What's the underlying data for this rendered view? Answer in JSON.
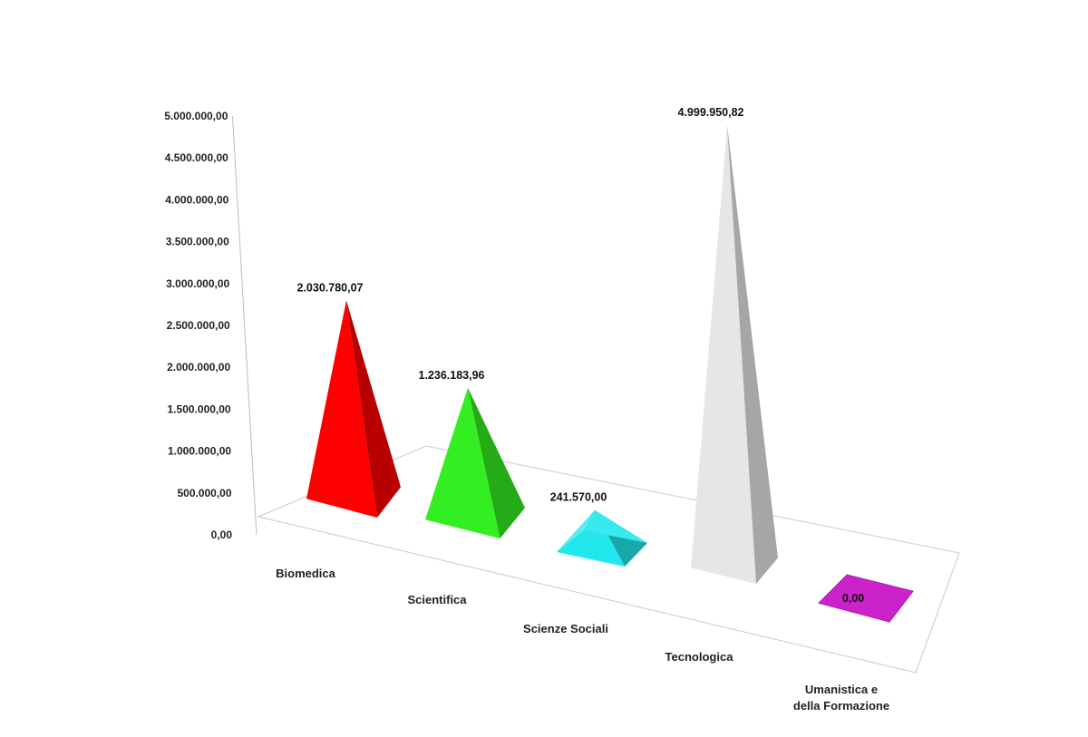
{
  "chart_data": {
    "type": "bar",
    "style": "3d-pyramid",
    "title": "",
    "xlabel": "",
    "ylabel": "",
    "categories": [
      "Biomedica",
      "Scientifica",
      "Scienze Sociali",
      "Tecnologica",
      "Umanistica e della Formazione"
    ],
    "category_lines": [
      [
        "Biomedica"
      ],
      [
        "Scientifica"
      ],
      [
        "Scienze Sociali"
      ],
      [
        "Tecnologica"
      ],
      [
        "Umanistica e",
        "della Formazione"
      ]
    ],
    "values": [
      2030780.07,
      1236183.96,
      241570.0,
      4999950.82,
      0.0
    ],
    "data_labels": [
      "2.030.780,07",
      "1.236.183,96",
      "241.570,00",
      "4.999.950,82",
      "0,00"
    ],
    "colors": [
      "#ff0000",
      "#33ee22",
      "#22e8ee",
      "#e6e6e6",
      "#cc22cc"
    ],
    "ylim": [
      0,
      5000000
    ],
    "yticks": [
      0,
      500000,
      1000000,
      1500000,
      2000000,
      2500000,
      3000000,
      3500000,
      4000000,
      4500000,
      5000000
    ],
    "ytick_labels": [
      "0,00",
      "500.000,00",
      "1.000.000,00",
      "1.500.000,00",
      "2.000.000,00",
      "2.500.000,00",
      "3.000.000,00",
      "3.500.000,00",
      "4.000.000,00",
      "4.500.000,00",
      "5.000.000,00"
    ],
    "grid": false,
    "legend": "none"
  }
}
